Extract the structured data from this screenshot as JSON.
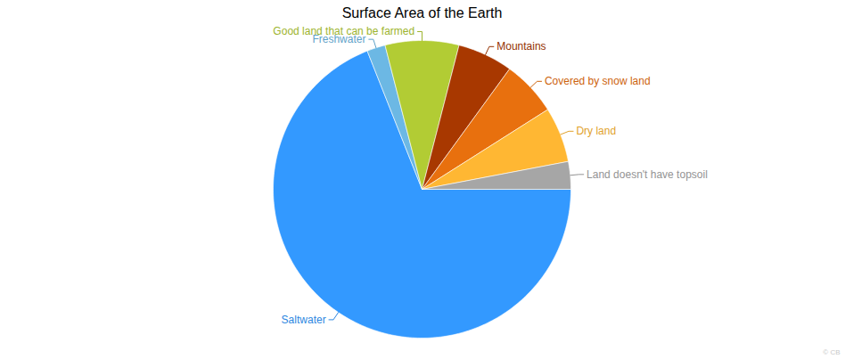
{
  "chart_data": {
    "type": "pie",
    "title": "Surface Area of the Earth",
    "categories": [
      "Saltwater",
      "Freshwater",
      "Good land that can be farmed",
      "Mountains",
      "Covered by snow land",
      "Dry land",
      "Land doesn't have topsoil"
    ],
    "values": [
      69,
      2,
      8,
      6,
      6,
      6,
      3
    ],
    "colors": [
      "#3399ff",
      "#6cb8e4",
      "#b2cc34",
      "#a83800",
      "#e8700e",
      "#ffb733",
      "#a6a6a6"
    ],
    "caption": "© CB"
  }
}
